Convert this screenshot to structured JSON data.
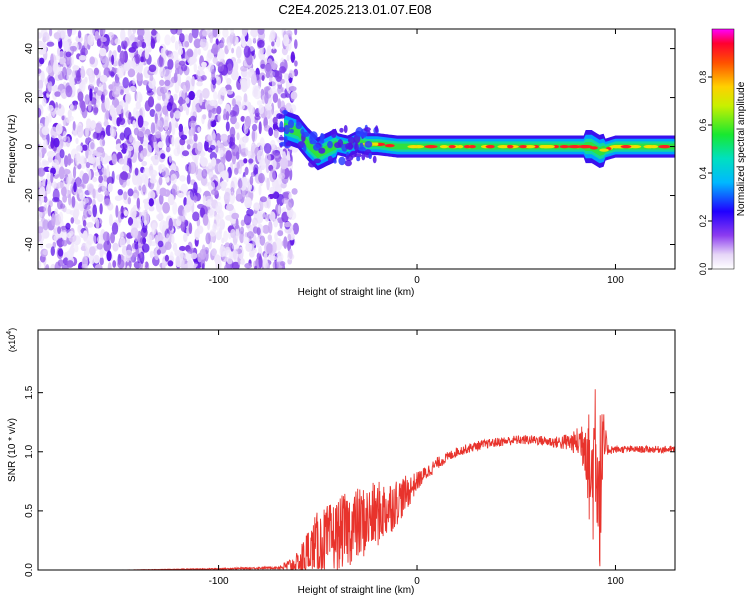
{
  "title": "C2E4.2025.213.01.07.E08",
  "chart_data": [
    {
      "type": "heatmap",
      "xlabel": "Height of straight line (km)",
      "ylabel": "Frequency (Hz)",
      "xlim": [
        -191,
        130
      ],
      "ylim": [
        -50,
        48
      ],
      "xticks": [
        -100,
        0,
        100
      ],
      "xtick_labels": [
        "-100",
        "0",
        "100"
      ],
      "yticks": [
        -40,
        -20,
        0,
        20,
        40
      ],
      "ytick_labels": [
        "-40",
        "-20",
        "0",
        "20",
        "40"
      ],
      "noise_region_x": [
        -191,
        -67
      ],
      "signal_track": {
        "x": [
          -67,
          -60,
          -55,
          -50,
          -45,
          -40,
          -35,
          -30,
          -25,
          -20,
          -10,
          0,
          20,
          50,
          80,
          88,
          92,
          100,
          130
        ],
        "freq": [
          8,
          6,
          1,
          -3,
          -1,
          1,
          0,
          2,
          1,
          1,
          0,
          0,
          0,
          0,
          0,
          0,
          -2,
          0,
          0
        ]
      },
      "colorbar": {
        "label": "Normalized spectral amplitude",
        "range": [
          0,
          1
        ],
        "ticks": [
          0.0,
          0.2,
          0.4,
          0.6,
          0.8
        ],
        "tick_labels": [
          "0.0",
          "0.2",
          "0.4",
          "0.6",
          "0.8"
        ]
      },
      "grid": false
    },
    {
      "type": "line",
      "xlabel": "Height of straight line (km)",
      "ylabel": "SNR (10 * v/v)",
      "y_multiplier_label": "(x10",
      "y_multiplier_exp": "4",
      "xlim": [
        -191,
        130
      ],
      "ylim": [
        0,
        2.03
      ],
      "xticks": [
        -100,
        0,
        100
      ],
      "xtick_labels": [
        "-100",
        "0",
        "100"
      ],
      "yticks": [
        0.0,
        0.5,
        1.0,
        1.5
      ],
      "ytick_labels": [
        "0.0",
        "0.5",
        "1.0",
        "1.5"
      ],
      "color": "#e8332c",
      "series": [
        {
          "x": [
            -191,
            -150,
            -100,
            -70,
            -60,
            -55,
            -50,
            -45,
            -40,
            -35,
            -30,
            -25,
            -20,
            -15,
            -10,
            -5,
            0,
            10,
            20,
            30,
            40,
            50,
            60,
            70,
            80,
            85,
            88,
            90,
            92,
            94,
            96,
            100,
            110,
            120,
            130
          ],
          "y": [
            0.0,
            0.0,
            0.01,
            0.02,
            0.05,
            0.12,
            0.2,
            0.25,
            0.3,
            0.35,
            0.38,
            0.42,
            0.47,
            0.52,
            0.58,
            0.65,
            0.75,
            0.9,
            1.0,
            1.05,
            1.08,
            1.1,
            1.1,
            1.08,
            1.08,
            1.1,
            0.7,
            1.2,
            0.6,
            1.05,
            1.02,
            1.02,
            1.02,
            1.02,
            1.02
          ],
          "amp": [
            0.0,
            0.0,
            0.005,
            0.01,
            0.1,
            0.25,
            0.3,
            0.3,
            0.3,
            0.32,
            0.32,
            0.3,
            0.28,
            0.25,
            0.2,
            0.15,
            0.08,
            0.05,
            0.04,
            0.04,
            0.04,
            0.04,
            0.04,
            0.05,
            0.1,
            0.3,
            0.6,
            0.8,
            0.8,
            0.3,
            0.05,
            0.03,
            0.03,
            0.03,
            0.03
          ]
        }
      ],
      "grid": false
    }
  ]
}
